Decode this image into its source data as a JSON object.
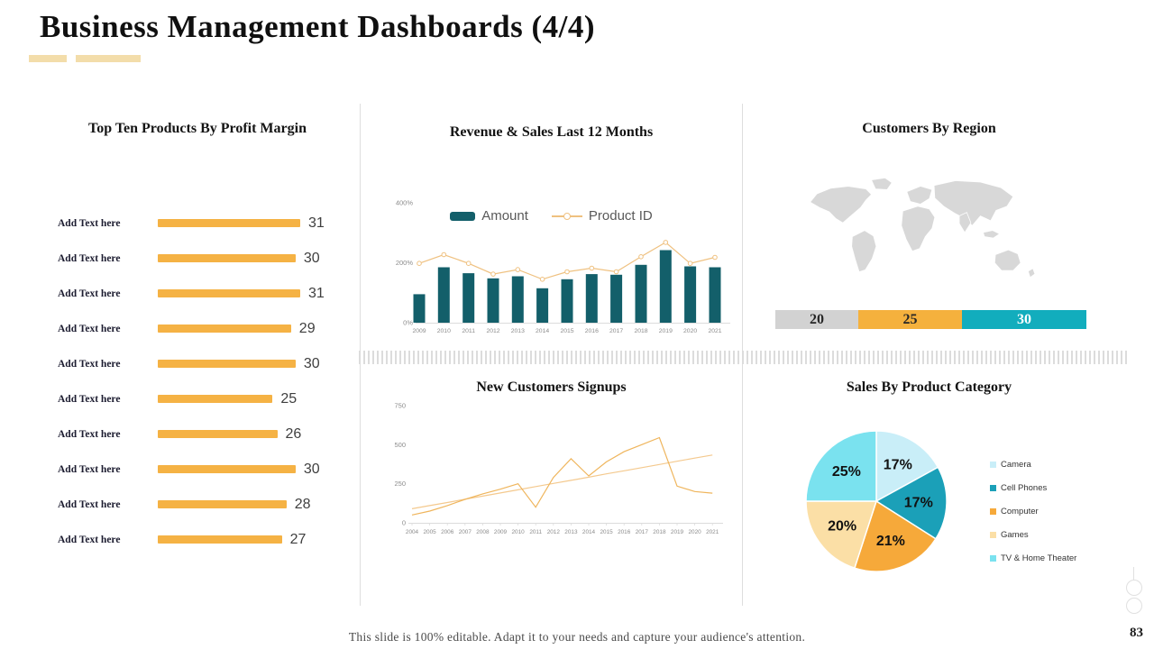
{
  "slide": {
    "title": "Business Management Dashboards (4/4)",
    "footer": "This slide is 100% editable.  Adapt it to your needs and capture your audience's attention.",
    "page_number": "83"
  },
  "colors": {
    "accent_orange": "#F5B244",
    "accent_teal_dark": "#135F6A",
    "accent_teal": "#12ADBD",
    "underline_wheat": "#F3DDAA",
    "map_gray": "#D8D8D8",
    "axis_text": "#8c8c8c"
  },
  "chart_data": [
    {
      "type": "bar",
      "orientation": "horizontal",
      "title": "Top Ten Products By Profit Margin",
      "categories": [
        "Add Text here",
        "Add Text here",
        "Add Text here",
        "Add Text here",
        "Add Text here",
        "Add Text here",
        "Add Text here",
        "Add Text here",
        "Add Text here",
        "Add Text here"
      ],
      "values": [
        31,
        30,
        31,
        29,
        30,
        25,
        26,
        30,
        28,
        27
      ],
      "bar_color": "#F5B244",
      "xlim": [
        0,
        33
      ],
      "data_labels": true
    },
    {
      "type": "combo-bar-line",
      "title": "Revenue & Sales Last 12 Months",
      "categories": [
        "2009",
        "2010",
        "2011",
        "2012",
        "2013",
        "2014",
        "2015",
        "2016",
        "2017",
        "2018",
        "2019",
        "2020",
        "2021"
      ],
      "series": [
        {
          "name": "Amount",
          "type": "bar",
          "color": "#135F6A",
          "values": [
            95,
            185,
            165,
            148,
            155,
            115,
            145,
            162,
            160,
            193,
            242,
            188,
            185
          ]
        },
        {
          "name": "Product ID",
          "type": "line",
          "color": "#EFC180",
          "values": [
            198,
            227,
            198,
            162,
            177,
            145,
            170,
            182,
            170,
            220,
            268,
            198,
            218
          ]
        }
      ],
      "ylim": [
        0,
        400
      ],
      "yticks": [
        0,
        200,
        400
      ],
      "ytick_labels": [
        "0%",
        "200%",
        "400%"
      ],
      "legend_position": "top"
    },
    {
      "type": "stacked-bar",
      "title": "Customers By Region",
      "segments": [
        {
          "value": 20,
          "color": "#D2D2D2",
          "text_color": "#262626"
        },
        {
          "value": 25,
          "color": "#F5B13D",
          "text_color": "#262626"
        },
        {
          "value": 30,
          "color": "#12ADBD",
          "text_color": "#FFFFFF"
        }
      ],
      "has_world_map": true
    },
    {
      "type": "line",
      "title": "New Customers Signups",
      "x": [
        "2004",
        "2005",
        "2006",
        "2007",
        "2008",
        "2009",
        "2010",
        "2011",
        "2012",
        "2013",
        "2014",
        "2015",
        "2016",
        "2017",
        "2018",
        "2019",
        "2020",
        "2021"
      ],
      "series": [
        {
          "name": "series_1",
          "color": "#F4C98E",
          "values": [
            90,
            110,
            130,
            151,
            171,
            191,
            211,
            232,
            252,
            272,
            292,
            313,
            333,
            353,
            373,
            394,
            414,
            434
          ]
        },
        {
          "name": "series_2",
          "color": "#EFB55C",
          "values": [
            50,
            75,
            110,
            150,
            185,
            215,
            250,
            100,
            290,
            410,
            300,
            390,
            455,
            500,
            545,
            235,
            200,
            190
          ]
        }
      ],
      "ylim": [
        0,
        750
      ],
      "yticks": [
        0,
        250,
        500,
        750
      ],
      "grid": false,
      "legend_position": "none"
    },
    {
      "type": "pie",
      "title": "Sales By Product Category",
      "labels": [
        "Camera",
        "Cell Phones",
        "Computer",
        "Games",
        "TV & Home Theater"
      ],
      "values": [
        17,
        17,
        21,
        20,
        25
      ],
      "slice_labels": [
        "17%",
        "17%",
        "21%",
        "20%",
        "25%"
      ],
      "colors": [
        "#C9EEF8",
        "#1BA0B8",
        "#F6A93A",
        "#FBDFA6",
        "#7AE2EF"
      ],
      "legend_position": "right"
    }
  ]
}
